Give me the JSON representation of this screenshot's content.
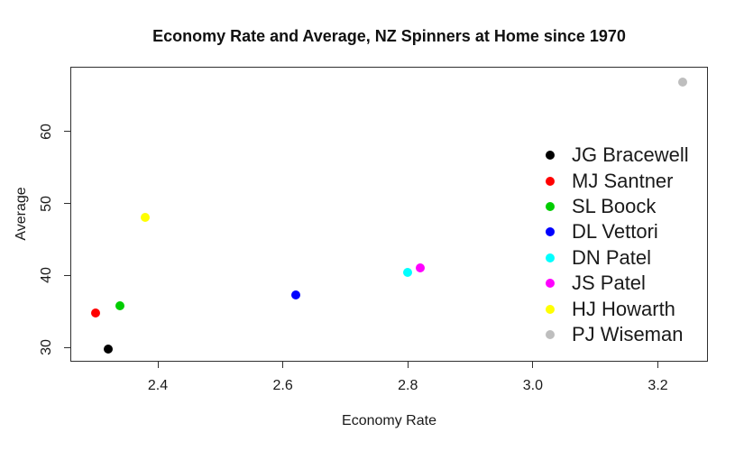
{
  "window": {
    "background": "#FFFFFF"
  },
  "chart_data": {
    "type": "scatter",
    "title": "Economy Rate and Average, NZ Spinners at Home since 1970",
    "xlabel": "Economy Rate",
    "ylabel": "Average",
    "xlim": [
      2.26,
      3.28
    ],
    "ylim": [
      28.0,
      69.0
    ],
    "x_ticks": [
      "2.4",
      "2.6",
      "2.8",
      "3.0",
      "3.2"
    ],
    "y_ticks": [
      "30",
      "40",
      "50",
      "60"
    ],
    "grid": false,
    "legend_position": "inside-right",
    "marker": "filled-circle",
    "axis_color": "#2f2f2f",
    "text_color": "#1a1a1a",
    "series": [
      {
        "name": "JG Bracewell",
        "color": "#000000",
        "x": 2.32,
        "y": 29.7
      },
      {
        "name": "MJ Santner",
        "color": "#FF0000",
        "x": 2.3,
        "y": 34.8
      },
      {
        "name": "SL Boock",
        "color": "#00CD00",
        "x": 2.34,
        "y": 35.8
      },
      {
        "name": "DL Vettori",
        "color": "#0000FF",
        "x": 2.62,
        "y": 37.3
      },
      {
        "name": "DN Patel",
        "color": "#00FFFF",
        "x": 2.8,
        "y": 40.4
      },
      {
        "name": "JS Patel",
        "color": "#FF00FF",
        "x": 2.82,
        "y": 41.0
      },
      {
        "name": "HJ Howarth",
        "color": "#FFFF00",
        "x": 2.38,
        "y": 48.0
      },
      {
        "name": "PJ Wiseman",
        "color": "#BEBEBE",
        "x": 3.24,
        "y": 66.9
      }
    ]
  }
}
